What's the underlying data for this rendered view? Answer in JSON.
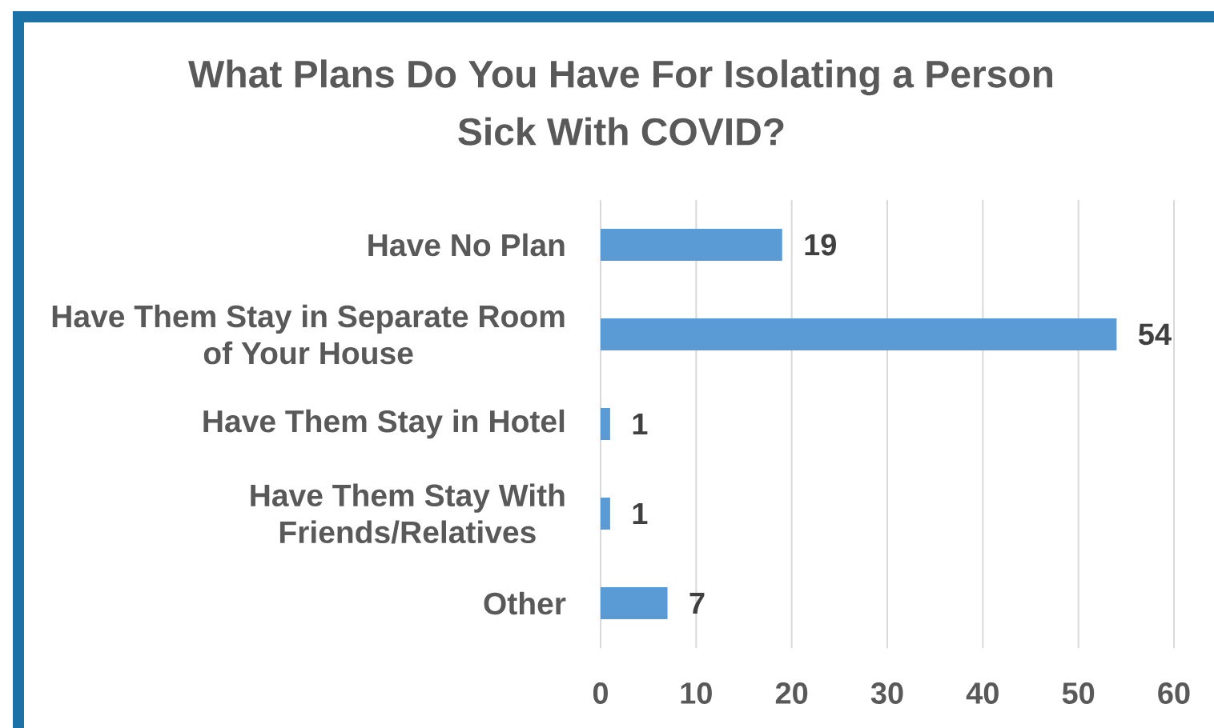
{
  "chart_data": {
    "type": "bar",
    "orientation": "horizontal",
    "title": "What Plans Do You Have For Isolating a Person Sick With COVID?",
    "categories": [
      "Have No Plan",
      "Have Them Stay in Separate Room of Your House",
      "Have Them Stay in Hotel",
      "Have Them Stay With Friends/Relatives",
      "Other"
    ],
    "values": [
      19,
      54,
      1,
      1,
      7
    ],
    "color": "#5b9bd5",
    "xlim": [
      0,
      60
    ],
    "xticks": [
      0,
      10,
      20,
      30,
      40,
      50,
      60
    ],
    "grid": "x",
    "data_labels": true
  }
}
